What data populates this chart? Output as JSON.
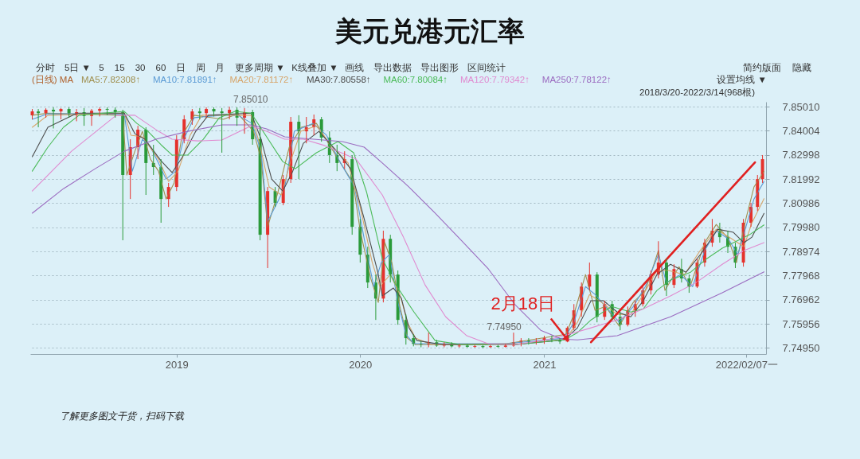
{
  "chart_data": {
    "type": "candlestick",
    "title": "美元兑港元汇率",
    "legend": "top left",
    "legend_title": "(日线) MA",
    "grid": "y",
    "xlim": [
      "2018-03-16",
      "2022-03-18"
    ],
    "ylim": [
      7.747,
      7.8521
    ],
    "xticks": [
      "2019",
      "2020",
      "2021",
      {
        "value": "2022-02-07",
        "label": "2022/02/07一"
      }
    ],
    "yticks": [
      {
        "value": 7.8501,
        "label": "7.85010"
      },
      7.84004,
      7.82998,
      7.81992,
      7.80986,
      {
        "value": 7.7998,
        "label": "7.79980"
      },
      7.78974,
      7.77968,
      7.76962,
      7.75956,
      {
        "value": 7.7495,
        "label": "7.74950"
      }
    ],
    "x": [
      "2018-03-20",
      "2018-04-01",
      "2018-04-16",
      "2018-05-01",
      "2018-05-16",
      "2018-06-01",
      "2018-06-16",
      "2018-07-01",
      "2018-07-16",
      "2018-08-01",
      "2018-08-16",
      "2018-09-01",
      "2018-09-16",
      "2018-10-01",
      "2018-10-16",
      "2018-11-01",
      "2018-11-16",
      "2018-12-01",
      "2018-12-16",
      "2019-01-01",
      "2019-01-16",
      "2019-02-01",
      "2019-02-16",
      "2019-03-01",
      "2019-03-16",
      "2019-04-01",
      "2019-04-16",
      "2019-05-01",
      "2019-05-16",
      "2019-06-01",
      "2019-06-16",
      "2019-07-01",
      "2019-07-16",
      "2019-08-01",
      "2019-08-16",
      "2019-09-01",
      "2019-09-16",
      "2019-10-01",
      "2019-10-16",
      "2019-11-01",
      "2019-11-16",
      "2019-12-01",
      "2019-12-16",
      "2020-01-01",
      "2020-01-16",
      "2020-02-01",
      "2020-02-16",
      "2020-03-01",
      "2020-03-16",
      "2020-04-01",
      "2020-04-16",
      "2020-05-01",
      "2020-05-16",
      "2020-06-01",
      "2020-06-16",
      "2020-07-01",
      "2020-07-16",
      "2020-08-01",
      "2020-08-16",
      "2020-09-01",
      "2020-09-16",
      "2020-10-01",
      "2020-10-16",
      "2020-11-01",
      "2020-11-16",
      "2020-12-01",
      "2020-12-16",
      "2021-01-01",
      "2021-01-16",
      "2021-02-01",
      "2021-02-16",
      "2021-03-01",
      "2021-03-16",
      "2021-04-01",
      "2021-04-16",
      "2021-05-01",
      "2021-05-16",
      "2021-06-01",
      "2021-06-16",
      "2021-07-01",
      "2021-07-16",
      "2021-08-01",
      "2021-08-16",
      "2021-09-01",
      "2021-09-16",
      "2021-10-01",
      "2021-10-16",
      "2021-11-01",
      "2021-11-16",
      "2021-12-01",
      "2021-12-16",
      "2022-01-01",
      "2022-01-16",
      "2022-02-01",
      "2022-02-16",
      "2022-03-01",
      "2022-03-11"
    ],
    "ohlc": [
      [
        7.8465,
        7.8491,
        7.8448,
        7.8481
      ],
      [
        7.8481,
        7.8491,
        7.8415,
        7.8474
      ],
      [
        7.8474,
        7.8494,
        7.8455,
        7.8488
      ],
      [
        7.8488,
        7.8498,
        7.841,
        7.8481
      ],
      [
        7.8481,
        7.8495,
        7.8448,
        7.8491
      ],
      [
        7.8491,
        7.8498,
        7.8455,
        7.8465
      ],
      [
        7.8465,
        7.8491,
        7.844,
        7.8478
      ],
      [
        7.8478,
        7.8495,
        7.8421,
        7.8462
      ],
      [
        7.8462,
        7.8491,
        7.8421,
        7.8484
      ],
      [
        7.8484,
        7.8498,
        7.846,
        7.8491
      ],
      [
        7.8491,
        7.8498,
        7.8465,
        7.8488
      ],
      [
        7.8488,
        7.8498,
        7.8455,
        7.8478
      ],
      [
        7.8478,
        7.8488,
        7.7944,
        7.8216
      ],
      [
        7.8216,
        7.8365,
        7.8116,
        7.8332
      ],
      [
        7.8332,
        7.8421,
        7.8282,
        7.8405
      ],
      [
        7.8405,
        7.8415,
        7.8133,
        7.8266
      ],
      [
        7.8266,
        7.8342,
        7.8216,
        7.8249
      ],
      [
        7.8249,
        7.8282,
        7.8017,
        7.8116
      ],
      [
        7.8116,
        7.8183,
        7.8083,
        7.8166
      ],
      [
        7.8166,
        7.8382,
        7.8149,
        7.8365
      ],
      [
        7.8365,
        7.8465,
        7.8348,
        7.8448
      ],
      [
        7.8448,
        7.8491,
        7.8425,
        7.8481
      ],
      [
        7.8481,
        7.8495,
        7.8448,
        7.8474
      ],
      [
        7.8474,
        7.8498,
        7.8455,
        7.8491
      ],
      [
        7.8491,
        7.8498,
        7.846,
        7.8481
      ],
      [
        7.8481,
        7.8495,
        7.8309,
        7.8474
      ],
      [
        7.8474,
        7.8501,
        7.8448,
        7.8488
      ],
      [
        7.8488,
        7.8498,
        7.8421,
        7.8455
      ],
      [
        7.8455,
        7.8495,
        7.8388,
        7.8478
      ],
      [
        7.8478,
        7.8488,
        7.8342,
        7.8365
      ],
      [
        7.8365,
        7.8421,
        7.7944,
        7.7967
      ],
      [
        7.7967,
        7.8166,
        7.7828,
        7.8149
      ],
      [
        7.8149,
        7.8166,
        7.8083,
        7.81
      ],
      [
        7.81,
        7.8216,
        7.809,
        7.8199
      ],
      [
        7.8199,
        7.8458,
        7.8183,
        7.8438
      ],
      [
        7.8438,
        7.8465,
        7.8199,
        7.8398
      ],
      [
        7.8398,
        7.8458,
        7.8348,
        7.8415
      ],
      [
        7.8415,
        7.8468,
        7.8382,
        7.8448
      ],
      [
        7.8448,
        7.8458,
        7.8355,
        7.8372
      ],
      [
        7.8372,
        7.8398,
        7.8266,
        7.8299
      ],
      [
        7.8299,
        7.8342,
        7.8232,
        7.8266
      ],
      [
        7.8266,
        7.8315,
        7.8242,
        7.8282
      ],
      [
        7.8282,
        7.8299,
        7.7967,
        7.8
      ],
      [
        7.8,
        7.8033,
        7.7851,
        7.7884
      ],
      [
        7.7884,
        7.7917,
        7.7745,
        7.7768
      ],
      [
        7.7768,
        7.7801,
        7.7612,
        7.7701
      ],
      [
        7.7701,
        7.7984,
        7.7685,
        7.795
      ],
      [
        7.795,
        7.7967,
        7.7768,
        7.7801
      ],
      [
        7.7801,
        7.7818,
        7.7592,
        7.7612
      ],
      [
        7.7612,
        7.7635,
        7.7509,
        7.7536
      ],
      [
        7.7536,
        7.7552,
        7.7502,
        7.7512
      ],
      [
        7.7512,
        7.7526,
        7.7498,
        7.7509
      ],
      [
        7.7509,
        7.7559,
        7.7498,
        7.7519
      ],
      [
        7.7519,
        7.7529,
        7.75,
        7.7505
      ],
      [
        7.7505,
        7.7519,
        7.7498,
        7.7512
      ],
      [
        7.7512,
        7.7519,
        7.7498,
        7.7502
      ],
      [
        7.7502,
        7.7512,
        7.7497,
        7.7505
      ],
      [
        7.7505,
        7.7512,
        7.7497,
        7.75
      ],
      [
        7.75,
        7.7509,
        7.7496,
        7.7503
      ],
      [
        7.7503,
        7.7506,
        7.7495,
        7.7499
      ],
      [
        7.7499,
        7.7509,
        7.7496,
        7.7503
      ],
      [
        7.7503,
        7.7509,
        7.7497,
        7.75
      ],
      [
        7.75,
        7.7512,
        7.7497,
        7.7505
      ],
      [
        7.7505,
        7.7559,
        7.75,
        7.7519
      ],
      [
        7.7519,
        7.7536,
        7.7502,
        7.7526
      ],
      [
        7.7526,
        7.7536,
        7.7509,
        7.7519
      ],
      [
        7.7519,
        7.7536,
        7.7509,
        7.7526
      ],
      [
        7.7526,
        7.7546,
        7.7512,
        7.7536
      ],
      [
        7.7536,
        7.7546,
        7.7519,
        7.7529
      ],
      [
        7.7529,
        7.7536,
        7.7512,
        7.7522
      ],
      [
        7.7522,
        7.7585,
        7.7519,
        7.7579
      ],
      [
        7.7579,
        7.7678,
        7.7569,
        7.7652
      ],
      [
        7.7652,
        7.7768,
        7.7625,
        7.7751
      ],
      [
        7.7751,
        7.7851,
        7.7735,
        7.7801
      ],
      [
        7.7801,
        7.7811,
        7.7602,
        7.7625
      ],
      [
        7.7625,
        7.7692,
        7.7612,
        7.7678
      ],
      [
        7.7678,
        7.7692,
        7.7612,
        7.7625
      ],
      [
        7.7625,
        7.7645,
        7.7569,
        7.7592
      ],
      [
        7.7592,
        7.7668,
        7.7585,
        7.7652
      ],
      [
        7.7652,
        7.7692,
        7.7625,
        7.7678
      ],
      [
        7.7678,
        7.7751,
        7.7668,
        7.7735
      ],
      [
        7.7735,
        7.7818,
        7.7718,
        7.7801
      ],
      [
        7.7801,
        7.794,
        7.7785,
        7.7851
      ],
      [
        7.7851,
        7.7867,
        7.7712,
        7.7758
      ],
      [
        7.7758,
        7.7844,
        7.7745,
        7.7824
      ],
      [
        7.7824,
        7.7867,
        7.7768,
        7.7785
      ],
      [
        7.7785,
        7.7801,
        7.7725,
        7.7751
      ],
      [
        7.7751,
        7.7867,
        7.7745,
        7.7851
      ],
      [
        7.7851,
        7.795,
        7.7834,
        7.7934
      ],
      [
        7.7934,
        7.8033,
        7.7917,
        7.7984
      ],
      [
        7.7984,
        7.8017,
        7.7934,
        7.7957
      ],
      [
        7.7957,
        7.7984,
        7.7891,
        7.7917
      ],
      [
        7.7917,
        7.7934,
        7.7828,
        7.7851
      ],
      [
        7.7851,
        7.8033,
        7.7834,
        7.8017
      ],
      [
        7.8017,
        7.81,
        7.8,
        7.8083
      ],
      [
        7.8083,
        7.8216,
        7.8066,
        7.8199
      ],
      [
        7.8199,
        7.8299,
        7.8183,
        7.8282
      ]
    ],
    "colors": [
      "#e5322d",
      "#2b9b3b",
      "#e5322d",
      "#2b9b3b",
      "#e5322d",
      "#2b9b3b",
      "#e5322d",
      "#2b9b3b",
      "#e5322d",
      "#e5322d",
      "#2b9b3b",
      "#2b9b3b",
      "#2b9b3b",
      "#e5322d",
      "#e5322d",
      "#2b9b3b",
      "#2b9b3b",
      "#2b9b3b",
      "#e5322d",
      "#e5322d",
      "#e5322d",
      "#e5322d",
      "#2b9b3b",
      "#e5322d",
      "#2b9b3b",
      "#2b9b3b",
      "#e5322d",
      "#2b9b3b",
      "#e5322d",
      "#2b9b3b",
      "#2b9b3b",
      "#e5322d",
      "#2b9b3b",
      "#e5322d",
      "#e5322d",
      "#2b9b3b",
      "#e5322d",
      "#e5322d",
      "#2b9b3b",
      "#2b9b3b",
      "#2b9b3b",
      "#e5322d",
      "#2b9b3b",
      "#2b9b3b",
      "#2b9b3b",
      "#2b9b3b",
      "#e5322d",
      "#2b9b3b",
      "#2b9b3b",
      "#2b9b3b",
      "#2b9b3b",
      "#2b9b3b",
      "#e5322d",
      "#2b9b3b",
      "#e5322d",
      "#2b9b3b",
      "#e5322d",
      "#2b9b3b",
      "#e5322d",
      "#2b9b3b",
      "#e5322d",
      "#2b9b3b",
      "#e5322d",
      "#e5322d",
      "#e5322d",
      "#2b9b3b",
      "#e5322d",
      "#e5322d",
      "#2b9b3b",
      "#2b9b3b",
      "#e5322d",
      "#e5322d",
      "#e5322d",
      "#e5322d",
      "#2b9b3b",
      "#e5322d",
      "#2b9b3b",
      "#2b9b3b",
      "#e5322d",
      "#e5322d",
      "#e5322d",
      "#e5322d",
      "#e5322d",
      "#2b9b3b",
      "#e5322d",
      "#2b9b3b",
      "#2b9b3b",
      "#e5322d",
      "#e5322d",
      "#e5322d",
      "#2b9b3b",
      "#2b9b3b",
      "#2b9b3b",
      "#e5322d",
      "#e5322d",
      "#e5322d",
      "#e5322d"
    ],
    "series": [
      {
        "type": "line",
        "name": "MA5:7.82308↑",
        "color": "#a09050",
        "x": [
          "2018-03-20",
          "2018-04-20",
          "2018-09-16",
          "2018-09-24",
          "2018-10-10",
          "2018-10-25",
          "2018-11-10",
          "2018-11-26",
          "2018-12-11",
          "2018-12-27",
          "2019-01-12",
          "2019-02-05",
          "2019-04-04",
          "2019-05-03",
          "2019-06-03",
          "2019-06-18",
          "2019-07-01",
          "2019-07-20",
          "2019-08-13",
          "2019-09-06",
          "2019-10-06",
          "2019-10-30",
          "2019-11-23",
          "2019-12-18",
          "2020-01-01",
          "2020-01-22",
          "2020-02-06",
          "2020-02-19",
          "2020-03-04",
          "2020-03-20",
          "2020-04-04",
          "2020-04-20",
          "2020-10-18",
          "2021-02-13",
          "2021-03-01",
          "2021-03-24",
          "2021-04-12",
          "2021-05-03",
          "2021-05-30",
          "2021-06-27",
          "2021-07-21",
          "2021-08-16",
          "2021-08-29",
          "2021-09-26",
          "2021-10-18",
          "2021-11-16",
          "2021-12-09",
          "2022-01-02",
          "2022-01-18",
          "2022-02-06",
          "2022-02-22",
          "2022-03-14"
        ],
        "values": [
          7.8465,
          7.8474,
          7.8465,
          7.8216,
          7.8315,
          7.8398,
          7.8282,
          7.8232,
          7.8116,
          7.8183,
          7.8382,
          7.8465,
          7.8448,
          7.8471,
          7.8398,
          7.8282,
          7.8,
          7.8133,
          7.8332,
          7.8415,
          7.8431,
          7.8348,
          7.8266,
          7.8183,
          7.7984,
          7.7785,
          7.7685,
          7.7934,
          7.7851,
          7.7668,
          7.7536,
          7.7509,
          7.7513,
          7.7552,
          7.7635,
          7.7801,
          7.7652,
          7.7668,
          7.7586,
          7.7685,
          7.7735,
          7.7901,
          7.7735,
          7.7834,
          7.7751,
          7.7934,
          7.801,
          7.795,
          7.7851,
          7.8033,
          7.8166,
          7.8231
        ]
      },
      {
        "type": "line",
        "name": "MA10:7.81891↑",
        "color": "#5b9bd5",
        "x": [
          "2018-03-20",
          "2018-04-20",
          "2018-09-19",
          "2018-10-05",
          "2018-10-25",
          "2018-11-10",
          "2018-11-26",
          "2018-12-11",
          "2018-12-30",
          "2019-01-15",
          "2019-02-05",
          "2019-04-01",
          "2019-05-03",
          "2019-05-31",
          "2019-06-18",
          "2019-07-01",
          "2019-07-20",
          "2019-08-04",
          "2019-08-23",
          "2019-09-29",
          "2019-10-26",
          "2019-11-23",
          "2019-12-21",
          "2020-01-09",
          "2020-01-28",
          "2020-02-12",
          "2020-02-28",
          "2020-03-16",
          "2020-04-01",
          "2020-04-17",
          "2020-10-18",
          "2021-02-10",
          "2021-03-01",
          "2021-03-24",
          "2021-04-12",
          "2021-05-03",
          "2021-05-30",
          "2021-06-27",
          "2021-07-21",
          "2021-08-16",
          "2021-09-01",
          "2021-09-29",
          "2021-10-23",
          "2021-11-16",
          "2021-12-09",
          "2022-01-02",
          "2022-01-21",
          "2022-02-06",
          "2022-02-22",
          "2022-03-14"
        ],
        "values": [
          7.8448,
          7.8471,
          7.8471,
          7.8232,
          7.8365,
          7.8332,
          7.8266,
          7.8199,
          7.8232,
          7.8365,
          7.8455,
          7.8465,
          7.8465,
          7.8431,
          7.8315,
          7.8023,
          7.81,
          7.8166,
          7.8398,
          7.8431,
          7.8382,
          7.8266,
          7.8166,
          7.795,
          7.7751,
          7.7851,
          7.7884,
          7.7685,
          7.7552,
          7.7513,
          7.7513,
          7.7536,
          7.7602,
          7.7751,
          7.7718,
          7.7668,
          7.7602,
          7.7668,
          7.7751,
          7.7884,
          7.7768,
          7.7801,
          7.7751,
          7.7901,
          7.7984,
          7.795,
          7.7884,
          7.8,
          7.8116,
          7.8189
        ]
      },
      {
        "type": "line",
        "name": "MA20:7.81172↑",
        "color": "#d7a56a",
        "x": [
          "2018-03-20",
          "2018-04-20",
          "2018-09-19",
          "2018-10-02",
          "2018-10-25",
          "2018-11-26",
          "2018-12-16",
          "2019-01-04",
          "2019-01-28",
          "2019-02-20",
          "2019-05-29",
          "2019-06-15",
          "2019-07-04",
          "2019-07-28",
          "2019-08-17",
          "2019-09-05",
          "2019-10-06",
          "2019-11-07",
          "2019-12-08",
          "2020-01-01",
          "2020-01-25",
          "2020-02-09",
          "2020-03-01",
          "2020-03-20",
          "2020-04-04",
          "2020-04-20",
          "2020-05-22",
          "2020-11-18",
          "2021-02-13",
          "2021-03-08",
          "2021-04-01",
          "2021-04-25",
          "2021-05-26",
          "2021-06-22",
          "2021-07-17",
          "2021-08-13",
          "2021-09-05",
          "2021-10-07",
          "2021-11-07",
          "2021-12-09",
          "2022-01-09",
          "2022-02-02",
          "2022-02-18",
          "2022-03-14"
        ],
        "values": [
          7.8415,
          7.8465,
          7.8474,
          7.8382,
          7.8375,
          7.8282,
          7.8189,
          7.8232,
          7.8382,
          7.8465,
          7.8465,
          7.8348,
          7.8166,
          7.8133,
          7.8282,
          7.8398,
          7.8421,
          7.8332,
          7.8266,
          7.8083,
          7.7851,
          7.7751,
          7.7801,
          7.7718,
          7.7602,
          7.7536,
          7.7509,
          7.7513,
          7.7532,
          7.7602,
          7.7718,
          7.7685,
          7.7635,
          7.7635,
          7.7718,
          7.7818,
          7.7818,
          7.7801,
          7.7901,
          7.799,
          7.795,
          7.7917,
          7.8017,
          7.8117
        ]
      },
      {
        "type": "line",
        "name": "MA30:7.80558↑",
        "color": "#4d4d4d",
        "x": [
          "2018-03-20",
          "2018-04-20",
          "2018-06-17",
          "2018-09-19",
          "2018-10-10",
          "2018-10-30",
          "2018-12-01",
          "2018-12-23",
          "2019-01-12",
          "2019-02-08",
          "2019-03-05",
          "2019-05-29",
          "2019-06-18",
          "2019-07-09",
          "2019-07-31",
          "2019-08-20",
          "2019-09-10",
          "2019-10-11",
          "2019-11-18",
          "2019-12-13",
          "2020-01-09",
          "2020-02-05",
          "2020-02-14",
          "2020-03-07",
          "2020-03-23",
          "2020-04-07",
          "2020-04-23",
          "2020-06-14",
          "2020-11-03",
          "2021-02-10",
          "2021-03-08",
          "2021-04-04",
          "2021-04-29",
          "2021-05-26",
          "2021-06-22",
          "2021-07-17",
          "2021-08-13",
          "2021-09-09",
          "2021-10-10",
          "2021-11-10",
          "2021-12-12",
          "2022-01-12",
          "2022-02-02",
          "2022-02-18",
          "2022-03-14"
        ],
        "values": [
          7.8292,
          7.8415,
          7.8474,
          7.8474,
          7.8388,
          7.8365,
          7.8275,
          7.8226,
          7.8289,
          7.8398,
          7.8465,
          7.8474,
          7.8365,
          7.8199,
          7.8149,
          7.8232,
          7.8348,
          7.8398,
          7.8309,
          7.8242,
          7.8033,
          7.7811,
          7.7712,
          7.7745,
          7.7702,
          7.7579,
          7.7526,
          7.7509,
          7.7509,
          7.7529,
          7.7579,
          7.7692,
          7.7692,
          7.7645,
          7.7625,
          7.7692,
          7.7801,
          7.7844,
          7.7811,
          7.7891,
          7.799,
          7.7977,
          7.7934,
          7.7957,
          7.8056
        ]
      },
      {
        "type": "line",
        "name": "MA60:7.80084↑",
        "color": "#4cbb5a",
        "x": [
          "2018-03-20",
          "2018-04-20",
          "2018-05-21",
          "2018-06-21",
          "2018-09-19",
          "2018-10-14",
          "2018-11-05",
          "2018-12-01",
          "2018-12-23",
          "2019-01-23",
          "2019-02-23",
          "2019-03-27",
          "2019-04-27",
          "2019-05-29",
          "2019-06-29",
          "2019-07-31",
          "2019-08-25",
          "2019-10-06",
          "2019-11-18",
          "2019-12-19",
          "2020-01-14",
          "2020-02-14",
          "2020-03-12",
          "2020-04-17",
          "2020-05-29",
          "2020-07-20",
          "2020-11-03",
          "2020-12-20",
          "2021-02-10",
          "2021-03-08",
          "2021-04-04",
          "2021-05-15",
          "2021-06-22",
          "2021-07-17",
          "2021-08-13",
          "2021-09-09",
          "2021-10-19",
          "2021-11-20",
          "2021-12-21",
          "2022-01-22",
          "2022-02-13",
          "2022-03-14"
        ],
        "values": [
          7.8232,
          7.8332,
          7.8415,
          7.8465,
          7.8481,
          7.8431,
          7.8398,
          7.8342,
          7.8299,
          7.8299,
          7.8365,
          7.8455,
          7.8481,
          7.8474,
          7.8375,
          7.8272,
          7.8242,
          7.8309,
          7.8355,
          7.8309,
          7.8143,
          7.7867,
          7.7758,
          7.7645,
          7.7526,
          7.7509,
          7.7509,
          7.7519,
          7.7529,
          7.7559,
          7.7612,
          7.7668,
          7.7645,
          7.7658,
          7.7735,
          7.7778,
          7.7811,
          7.7867,
          7.7911,
          7.7944,
          7.7967,
          7.8008
        ]
      },
      {
        "type": "line",
        "name": "MA120:7.79342↑",
        "color": "#e08ad0",
        "x": [
          "2018-03-20",
          "2018-06-06",
          "2018-09-03",
          "2018-10-10",
          "2018-11-26",
          "2018-12-23",
          "2019-02-12",
          "2019-04-01",
          "2019-05-29",
          "2019-06-29",
          "2019-08-04",
          "2019-09-10",
          "2019-10-22",
          "2019-12-24",
          "2020-02-14",
          "2020-03-27",
          "2020-05-09",
          "2020-06-19",
          "2020-07-31",
          "2020-09-12",
          "2020-11-03",
          "2021-01-05",
          "2021-02-10",
          "2021-04-04",
          "2021-05-26",
          "2021-07-17",
          "2021-09-09",
          "2021-10-30",
          "2021-12-21",
          "2022-02-02",
          "2022-03-14"
        ],
        "values": [
          7.8149,
          7.8315,
          7.8465,
          7.8465,
          7.8398,
          7.8365,
          7.8358,
          7.8362,
          7.8421,
          7.8398,
          7.8365,
          7.8365,
          7.8339,
          7.8282,
          7.8133,
          7.7957,
          7.7758,
          7.7625,
          7.7546,
          7.7512,
          7.7509,
          7.7529,
          7.7546,
          7.7579,
          7.7612,
          7.7658,
          7.7712,
          7.7768,
          7.7844,
          7.7901,
          7.7934
        ]
      },
      {
        "type": "line",
        "name": "MA250:7.78122↑",
        "color": "#9b6bc0",
        "x": [
          "2018-03-20",
          "2018-05-21",
          "2018-07-23",
          "2018-09-19",
          "2018-11-21",
          "2019-01-23",
          "2019-04-01",
          "2019-05-29",
          "2019-06-29",
          "2019-08-04",
          "2019-11-27",
          "2020-01-09",
          "2020-02-14",
          "2020-04-07",
          "2020-05-29",
          "2020-07-20",
          "2020-09-12",
          "2020-11-03",
          "2020-12-25",
          "2021-02-05",
          "2021-03-08",
          "2021-05-26",
          "2021-09-09",
          "2021-12-21",
          "2022-03-14"
        ],
        "values": [
          7.8057,
          7.8159,
          7.8242,
          7.8315,
          7.8365,
          7.8398,
          7.8425,
          7.8425,
          7.8408,
          7.8375,
          7.8355,
          7.8332,
          7.8266,
          7.8166,
          7.8057,
          7.7944,
          7.7824,
          7.7678,
          7.7569,
          7.7532,
          7.7529,
          7.7546,
          7.7625,
          7.7725,
          7.7812
        ]
      },
      {
        "type": "line",
        "color": "#e02020",
        "x": [
          "2021-04-04",
          "2022-02-24"
        ],
        "values": [
          7.7519,
          7.8269
        ]
      }
    ],
    "annotations": [
      "分时",
      "5日 ▼",
      "5",
      "15",
      "30",
      "60",
      "日",
      "周",
      "月",
      "更多周期 ▼",
      "K线叠加 ▼",
      "画线",
      "导出数据",
      "导出图形",
      "区间统计",
      "简约版面",
      "隐藏",
      "设置均线 ▼",
      "2018/3/20-2022/3/14(968根)",
      "了解更多图文干货，扫码下载",
      {
        "text": "2月18日",
        "x": "2021-02-18",
        "y": 7.7525
      },
      {
        "text": "7.85010",
        "x": "2019-04-16",
        "y": 7.8501
      },
      {
        "text": "7.74950",
        "x": "2020-09-01",
        "y": 7.7495
      }
    ]
  }
}
